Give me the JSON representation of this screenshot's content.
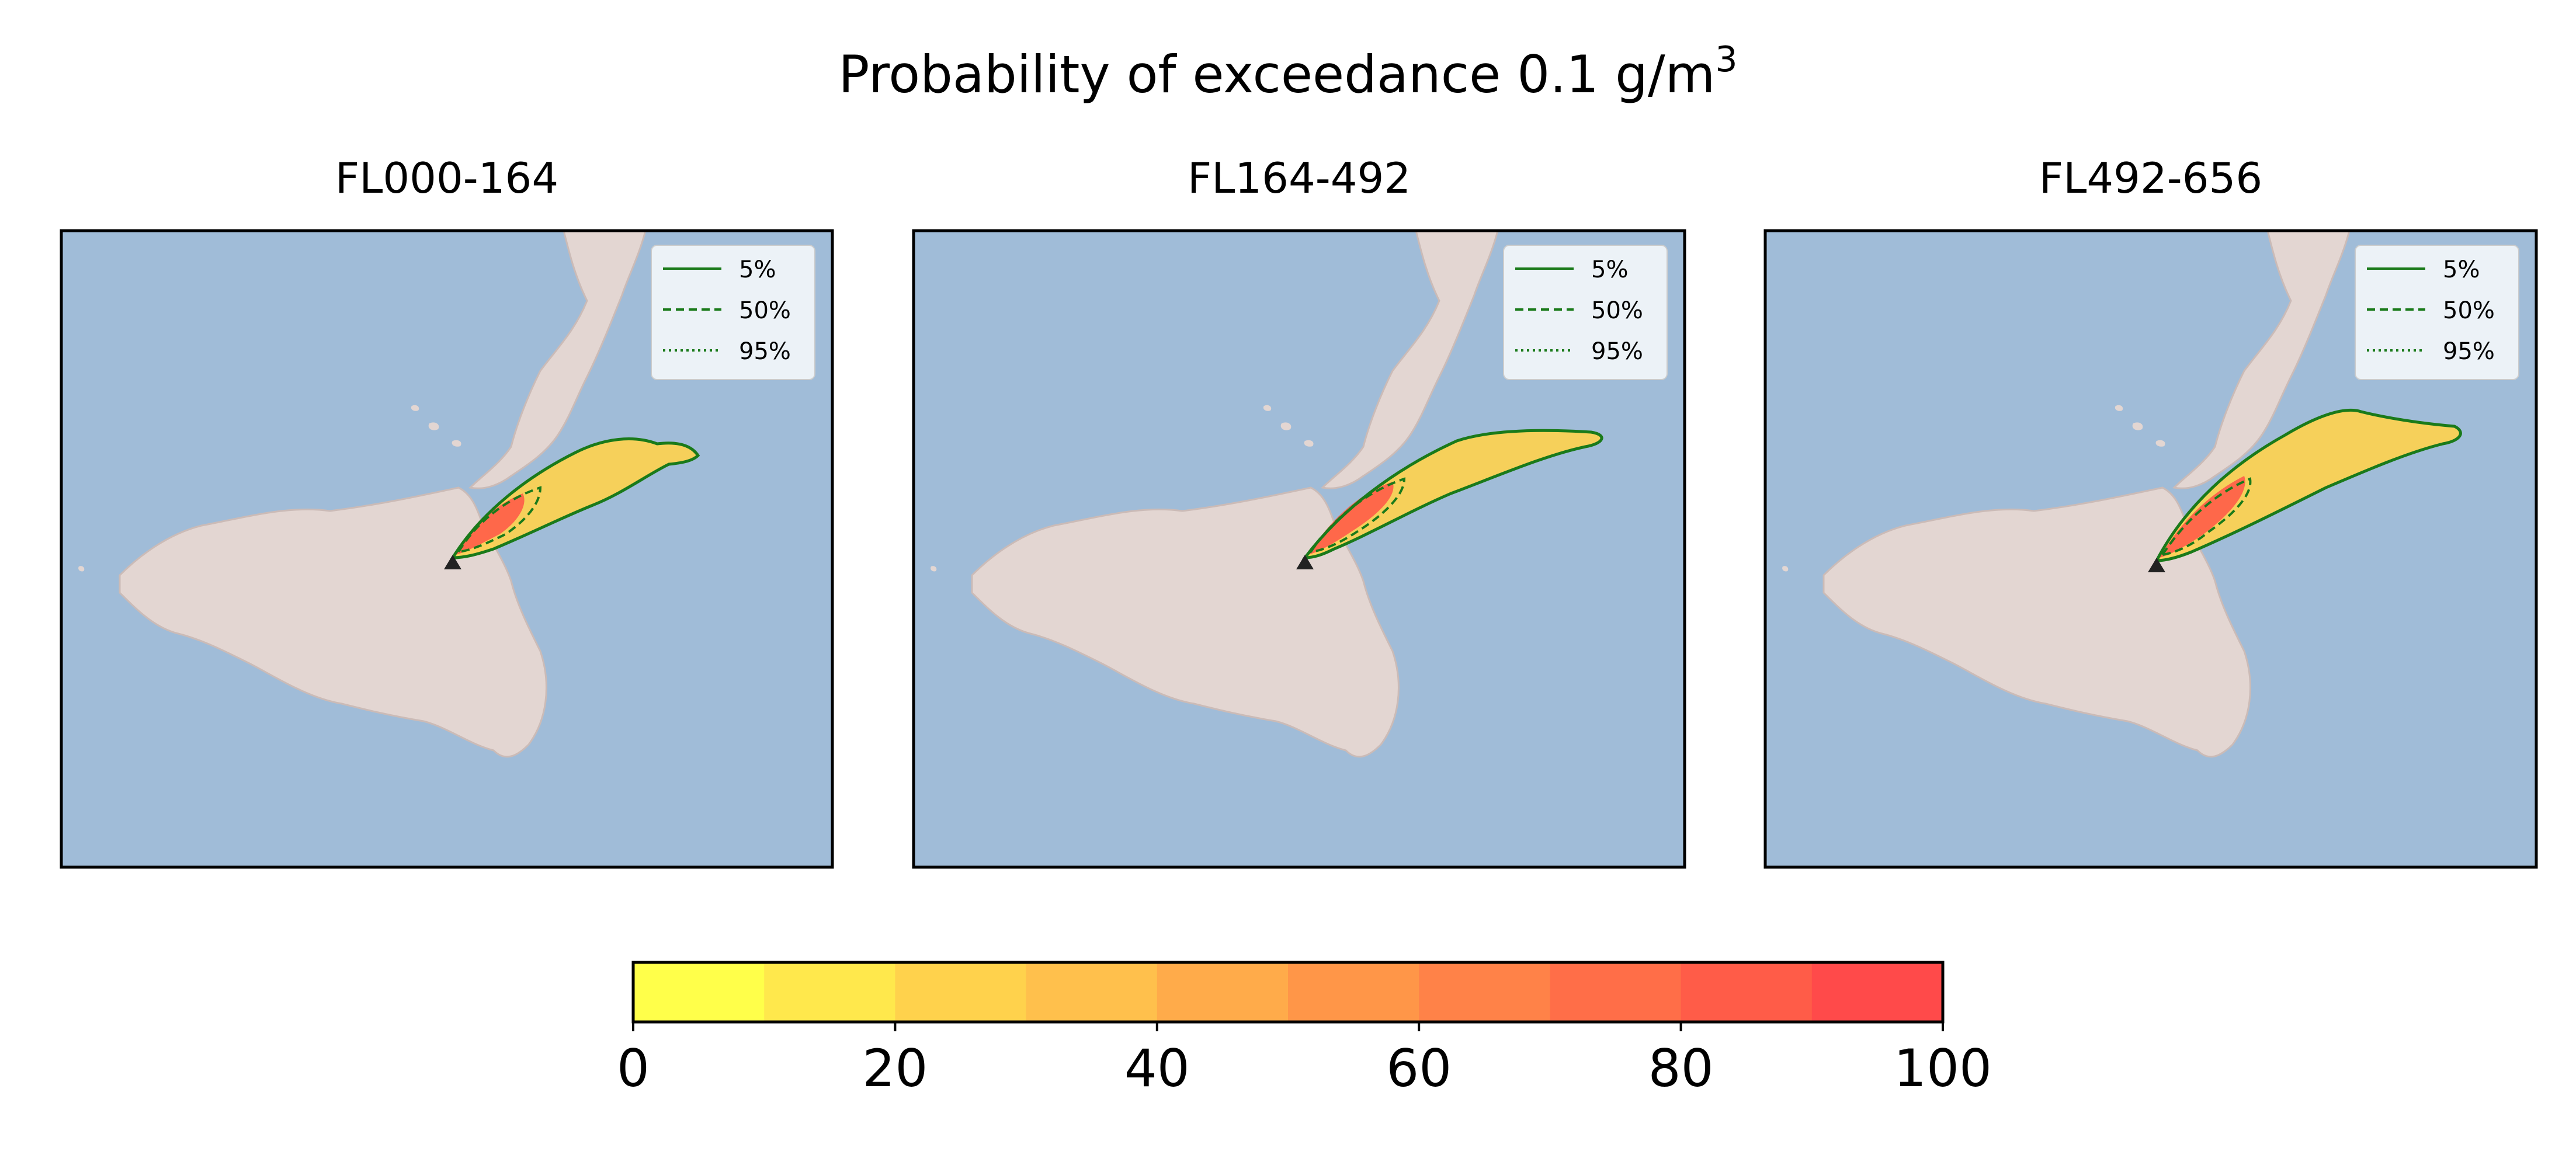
{
  "figure": {
    "title_text": "Probability of exceedance 0.1 g/m",
    "title_superscript": "3"
  },
  "panels": [
    {
      "title": "FL000-164"
    },
    {
      "title": "FL164-492"
    },
    {
      "title": "FL492-656"
    }
  ],
  "legend": {
    "entries": [
      {
        "label": "5%",
        "style": "solid"
      },
      {
        "label": "50%",
        "style": "dashed"
      },
      {
        "label": "95%",
        "style": "dotted"
      }
    ],
    "line_color": "#1a7a1a"
  },
  "colorbar": {
    "range": [
      0,
      100
    ],
    "step": 10,
    "tick_labels": [
      "0",
      "20",
      "40",
      "60",
      "80",
      "100"
    ],
    "colors": [
      "#ffff4a",
      "#ffe84c",
      "#ffd24c",
      "#ffc04c",
      "#ffab4a",
      "#ff9648",
      "#ff8248",
      "#ff6e48",
      "#ff5c48",
      "#ff4a4a"
    ]
  },
  "map_style": {
    "sea": "#a0bcd8",
    "land": "#e3d6d2",
    "land_shade": "#cbbbb7",
    "vent_marker": "#222222"
  }
}
